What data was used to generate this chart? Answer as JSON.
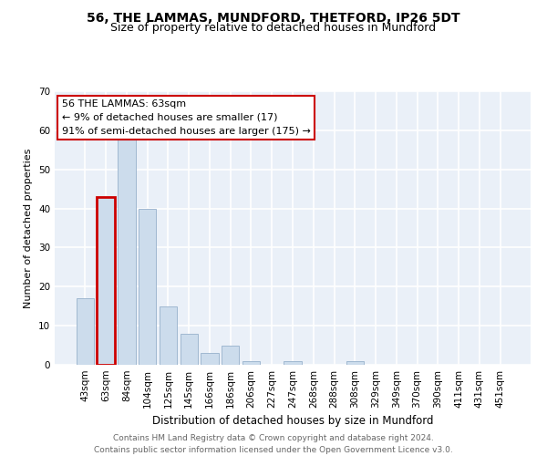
{
  "title1": "56, THE LAMMAS, MUNDFORD, THETFORD, IP26 5DT",
  "title2": "Size of property relative to detached houses in Mundford",
  "xlabel": "Distribution of detached houses by size in Mundford",
  "ylabel": "Number of detached properties",
  "categories": [
    "43sqm",
    "63sqm",
    "84sqm",
    "104sqm",
    "125sqm",
    "145sqm",
    "166sqm",
    "186sqm",
    "206sqm",
    "227sqm",
    "247sqm",
    "268sqm",
    "288sqm",
    "308sqm",
    "329sqm",
    "349sqm",
    "370sqm",
    "390sqm",
    "411sqm",
    "431sqm",
    "451sqm"
  ],
  "values": [
    17,
    43,
    59,
    40,
    15,
    8,
    3,
    5,
    1,
    0,
    1,
    0,
    0,
    1,
    0,
    0,
    0,
    0,
    0,
    0,
    0
  ],
  "bar_color": "#ccdcec",
  "bar_edge_color": "#a0b8d0",
  "highlight_bar_index": 1,
  "highlight_edge_color": "#cc0000",
  "annotation_text": "56 THE LAMMAS: 63sqm\n← 9% of detached houses are smaller (17)\n91% of semi-detached houses are larger (175) →",
  "annotation_box_color": "white",
  "annotation_box_edge_color": "#cc0000",
  "ylim": [
    0,
    70
  ],
  "yticks": [
    0,
    10,
    20,
    30,
    40,
    50,
    60,
    70
  ],
  "footer_text": "Contains HM Land Registry data © Crown copyright and database right 2024.\nContains public sector information licensed under the Open Government Licence v3.0.",
  "background_color": "#eaf0f8",
  "grid_color": "white",
  "title1_fontsize": 10,
  "title2_fontsize": 9,
  "xlabel_fontsize": 8.5,
  "ylabel_fontsize": 8,
  "tick_fontsize": 7.5,
  "annotation_fontsize": 8,
  "footer_fontsize": 6.5
}
